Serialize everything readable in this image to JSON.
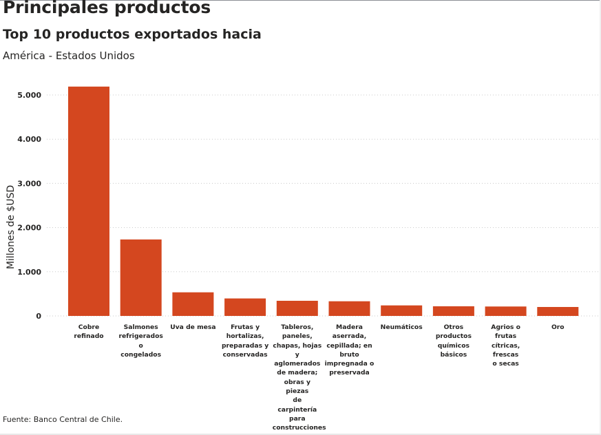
{
  "header": {
    "title": "Principales productos",
    "subtitle": "Top 10 productos exportados hacia",
    "region": "América - Estados Unidos"
  },
  "footer": {
    "source": "Fuente: Banco Central de Chile."
  },
  "colors": {
    "bar": "#d4471f",
    "grid": "#c8c8c8",
    "text": "#252423"
  },
  "chart_data": {
    "type": "bar",
    "title": "Top 10 productos exportados hacia",
    "subtitle": "América - Estados Unidos",
    "xlabel": "",
    "ylabel": "Millones de $USD",
    "ylim": [
      0,
      5200
    ],
    "yticks": [
      0,
      1000,
      2000,
      3000,
      4000,
      5000
    ],
    "ytick_labels": [
      "0",
      "1.000",
      "2.000",
      "3.000",
      "4.000",
      "5.000"
    ],
    "grid": true,
    "legend": "none",
    "categories": [
      "Cobre refinado",
      "Salmones refrigerados o congelados",
      "Uva de mesa",
      "Frutas y hortalizas, preparadas y conservadas",
      "Tableros, paneles, chapas, hojas y aglomerados de madera; obras y piezas de carpintería para construcciones",
      "Madera aserrada, cepillada; en bruto impregnada o preservada",
      "Neumáticos",
      "Otros productos químicos básicos",
      "Agrios o frutas cítricas, frescas o secas",
      "Oro"
    ],
    "category_lines": [
      [
        "Cobre refinado"
      ],
      [
        "Salmones",
        "refrigerados o",
        "congelados"
      ],
      [
        "Uva de mesa"
      ],
      [
        "Frutas y",
        "hortalizas,",
        "preparadas y",
        "conservadas"
      ],
      [
        "Tableros,",
        "paneles,",
        "chapas, hojas y",
        "aglomerados",
        "de madera;",
        "obras y piezas",
        "de carpintería",
        "para",
        "construcciones"
      ],
      [
        "Madera",
        "aserrada,",
        "cepillada; en",
        "bruto",
        "impregnada o",
        "preservada"
      ],
      [
        "Neumáticos"
      ],
      [
        "Otros",
        "productos",
        "químicos",
        "básicos"
      ],
      [
        "Agrios o frutas",
        "cítricas, frescas",
        "o secas"
      ],
      [
        "Oro"
      ]
    ],
    "values": [
      5190,
      1730,
      535,
      395,
      343,
      332,
      238,
      218,
      213,
      202
    ]
  }
}
